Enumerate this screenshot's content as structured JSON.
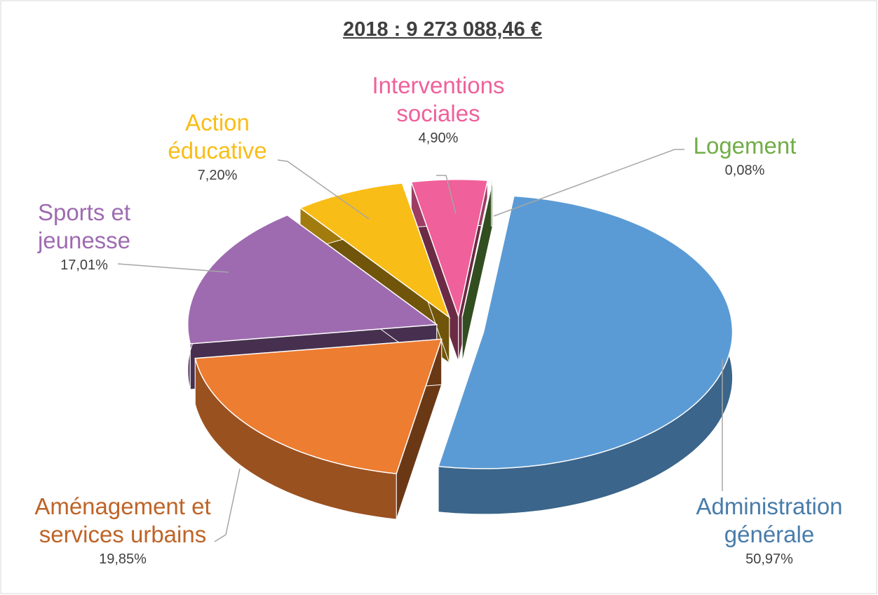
{
  "chart_data": {
    "type": "pie",
    "title": "2018 : 9 273 088,46 €",
    "categories": [
      "Administration générale",
      "Aménagement et services urbains",
      "Sports et jeunesse",
      "Action éducative",
      "Interventions sociales",
      "Logement"
    ],
    "values": [
      50.97,
      19.85,
      17.01,
      7.2,
      4.9,
      0.08
    ],
    "value_labels": [
      "50,97%",
      "19,85%",
      "17,01%",
      "7,20%",
      "4,90%",
      "0,08%"
    ],
    "colors": [
      "#5b9bd5",
      "#ed7d31",
      "#9e6bb0",
      "#f9bd17",
      "#f0609a",
      "#70ad47"
    ]
  }
}
